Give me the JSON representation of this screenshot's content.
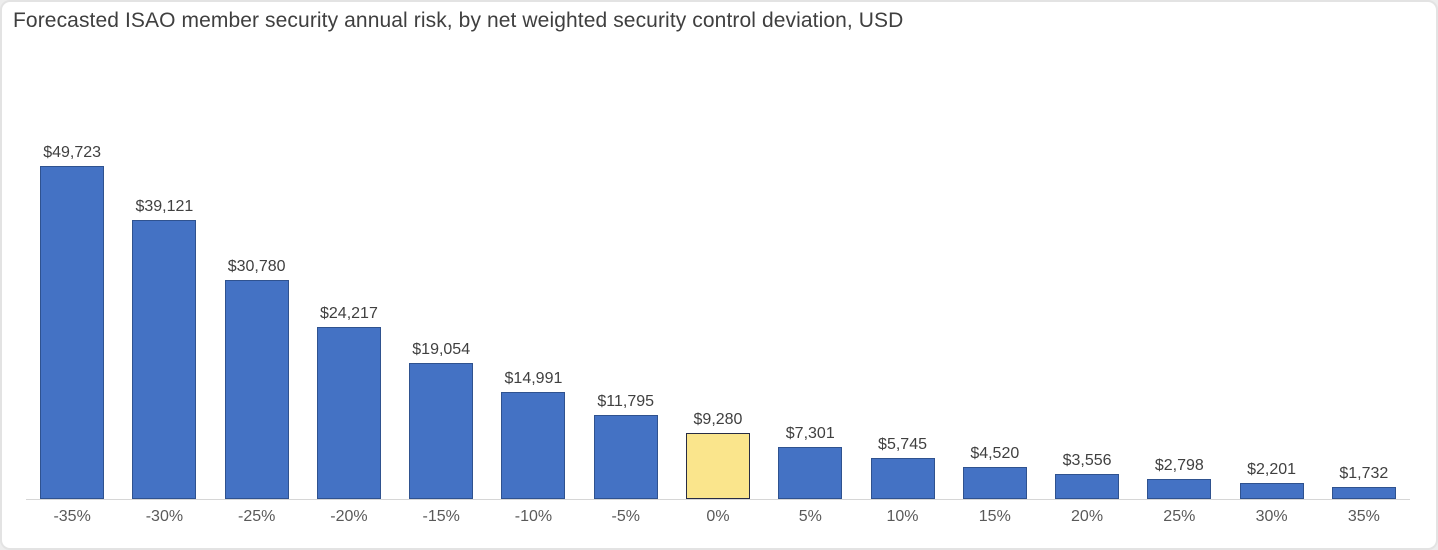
{
  "title": "Forecasted ISAO member security annual risk, by net weighted security control deviation, USD",
  "colors": {
    "bar_fill": "#4472c4",
    "bar_border": "#2f528f",
    "highlight_fill": "#fae58c",
    "highlight_border": "#272c44",
    "axis_line": "#d6d6d6",
    "value_label_text": "#404040",
    "tick_label_text": "#595959",
    "title_text": "#3f3f3f",
    "frame_border": "#e3e3e3",
    "background": "#ffffff"
  },
  "chart_data": {
    "type": "bar",
    "title": "Forecasted ISAO member security annual risk, by net weighted security control deviation, USD",
    "xlabel": "",
    "ylabel": "",
    "categories": [
      "-35%",
      "-30%",
      "-25%",
      "-20%",
      "-15%",
      "-10%",
      "-5%",
      "0%",
      "5%",
      "10%",
      "15%",
      "20%",
      "25%",
      "30%",
      "35%"
    ],
    "values": [
      49723,
      39121,
      30780,
      24217,
      19054,
      14991,
      11795,
      9280,
      7301,
      5745,
      4520,
      3556,
      2798,
      2201,
      1732
    ],
    "value_labels": [
      "$49,723",
      "$39,121",
      "$30,780",
      "$24,217",
      "$19,054",
      "$14,991",
      "$11,795",
      "$9,280",
      "$7,301",
      "$5,745",
      "$4,520",
      "$3,556",
      "$2,798",
      "$2,201",
      "$1,732"
    ],
    "highlight_index": 7,
    "highlight_category": "0%",
    "grid": false,
    "legend": "none",
    "y_axis_visible": false,
    "data_labels_position": "outside-end"
  }
}
